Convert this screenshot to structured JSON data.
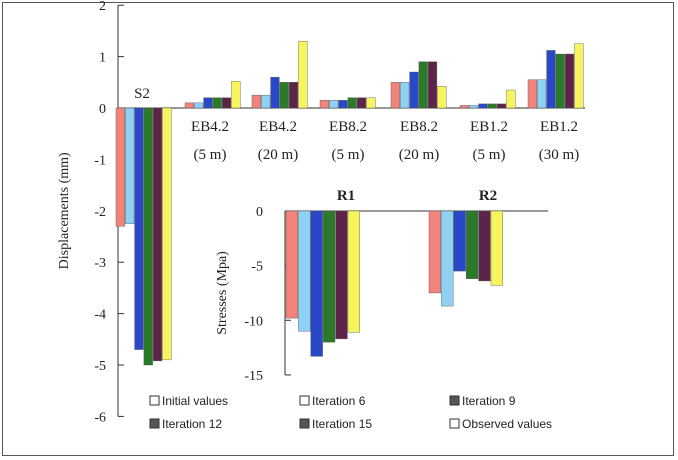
{
  "chart_data": [
    {
      "type": "bar",
      "ylabel": "Displacements (mm)",
      "ylim": [
        -6,
        2
      ],
      "yticks": [
        2,
        1,
        0,
        -1,
        -2,
        -3,
        -4,
        -5,
        -6
      ],
      "grid": false,
      "groups": [
        {
          "label": "S2",
          "sublabel": "",
          "values": [
            -2.3,
            -2.25,
            -4.7,
            -5.0,
            -4.92,
            -4.9
          ]
        },
        {
          "label": "EB4.2",
          "sublabel": "(5 m)",
          "values": [
            0.1,
            0.1,
            0.2,
            0.2,
            0.2,
            0.52
          ]
        },
        {
          "label": "EB4.2",
          "sublabel": "(20 m)",
          "values": [
            0.25,
            0.25,
            0.6,
            0.5,
            0.5,
            1.3
          ]
        },
        {
          "label": "EB8.2",
          "sublabel": "(5 m)",
          "values": [
            0.15,
            0.15,
            0.15,
            0.2,
            0.2,
            0.2
          ]
        },
        {
          "label": "EB8.2",
          "sublabel": "(20 m)",
          "values": [
            0.5,
            0.5,
            0.7,
            0.9,
            0.9,
            0.42
          ]
        },
        {
          "label": "EB1.2",
          "sublabel": "(5 m)",
          "values": [
            0.05,
            0.05,
            0.08,
            0.08,
            0.08,
            0.35
          ]
        },
        {
          "label": "EB1.2",
          "sublabel": "(30 m)",
          "values": [
            0.55,
            0.55,
            1.12,
            1.05,
            1.05,
            1.25
          ]
        }
      ]
    },
    {
      "type": "bar",
      "ylabel": "Stresses (Mpa)",
      "ylim": [
        -15,
        0
      ],
      "yticks": [
        0,
        -5,
        -10,
        -15
      ],
      "grid": false,
      "groups": [
        {
          "label": "R1",
          "values": [
            -9.8,
            -11.0,
            -13.3,
            -12.0,
            -11.7,
            -11.1
          ]
        },
        {
          "label": "R2",
          "values": [
            -7.5,
            -8.7,
            -5.5,
            -6.2,
            -6.4,
            -6.8
          ]
        }
      ]
    }
  ],
  "legend": {
    "placement": "bottom",
    "items": [
      {
        "label": "Initial values",
        "color": "#f2837a"
      },
      {
        "label": "Iteration 6",
        "color": "#8fd1f2"
      },
      {
        "label": "Iteration 9",
        "color": "#2948c8"
      },
      {
        "label": "Iteration 12",
        "color": "#2a7a2a"
      },
      {
        "label": "Iteration 15",
        "color": "#5c2448"
      },
      {
        "label": "Observed values",
        "color": "#f7f55e"
      }
    ]
  }
}
